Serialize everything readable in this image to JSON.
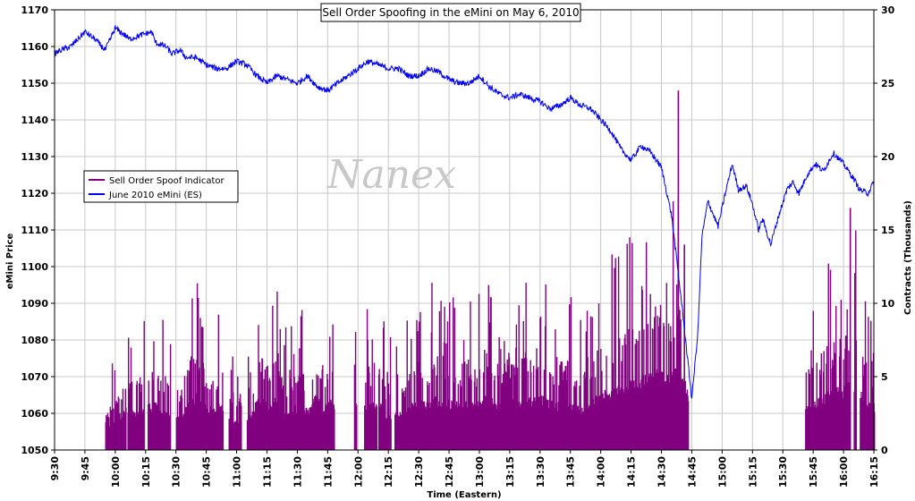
{
  "chart_data": {
    "type": "line",
    "title": "Sell Order Spoofing in the eMini on May 6, 2010",
    "watermark": "Nanex",
    "xlabel": "Time (Eastern)",
    "ylabel_left": "eMini Price",
    "ylabel_right": "Contracts (Thousands)",
    "x_ticks": [
      "9:30",
      "9:45",
      "10:00",
      "10:15",
      "10:30",
      "10:45",
      "11:00",
      "11:15",
      "11:30",
      "11:45",
      "12:00",
      "12:15",
      "12:30",
      "12:45",
      "13:00",
      "13:15",
      "13:30",
      "13:45",
      "14:00",
      "14:15",
      "14:30",
      "14:45",
      "15:00",
      "15:15",
      "15:30",
      "15:45",
      "16:00",
      "16:15"
    ],
    "x_tick_minutes": [
      0,
      15,
      30,
      45,
      60,
      75,
      90,
      105,
      120,
      135,
      150,
      165,
      180,
      195,
      210,
      225,
      240,
      255,
      270,
      285,
      300,
      315,
      330,
      345,
      360,
      375,
      390,
      405
    ],
    "xlim_minutes": [
      0,
      405
    ],
    "y_left_ticks": [
      1050,
      1060,
      1070,
      1080,
      1090,
      1100,
      1110,
      1120,
      1130,
      1140,
      1150,
      1160,
      1170
    ],
    "y_left_lim": [
      1050,
      1170
    ],
    "y_right_ticks": [
      0,
      5,
      10,
      15,
      20,
      25,
      30
    ],
    "y_right_lim": [
      0,
      30
    ],
    "legend_position": "middle-left",
    "series": [
      {
        "name": "Sell Order Spoof Indicator",
        "axis": "right",
        "color": "#800080",
        "style": "bars",
        "active_windows_minutes": [
          [
            25,
            35
          ],
          [
            36,
            44
          ],
          [
            46,
            57
          ],
          [
            60,
            83
          ],
          [
            86,
            92
          ],
          [
            95,
            138
          ],
          [
            148,
            149
          ],
          [
            153,
            159
          ],
          [
            160,
            166
          ],
          [
            168,
            313
          ],
          [
            371,
            393
          ],
          [
            395,
            396
          ],
          [
            398,
            405
          ]
        ],
        "x_minutes": [
          25,
          30,
          35,
          40,
          45,
          50,
          55,
          62,
          66,
          70,
          74,
          78,
          82,
          88,
          97,
          101,
          105,
          109,
          113,
          117,
          121,
          125,
          129,
          133,
          137,
          155,
          160,
          163,
          172,
          176,
          180,
          184,
          188,
          192,
          196,
          200,
          204,
          208,
          212,
          216,
          220,
          224,
          228,
          232,
          236,
          240,
          244,
          248,
          252,
          256,
          260,
          264,
          268,
          272,
          276,
          280,
          284,
          288,
          292,
          296,
          300,
          304,
          308,
          312,
          318,
          375,
          380,
          385,
          390,
          394,
          400,
          404
        ],
        "values": [
          2,
          3.5,
          4.5,
          4,
          5,
          5,
          4,
          3.5,
          5.5,
          6,
          5,
          4.5,
          5,
          3,
          4,
          6,
          5,
          5.5,
          4,
          4.5,
          5,
          4.5,
          6,
          5,
          5.5,
          5,
          5.5,
          4,
          4,
          5,
          5.5,
          5,
          6,
          5,
          5.5,
          5,
          5.5,
          5,
          6,
          5.5,
          5,
          6,
          5,
          6,
          5.5,
          6,
          5.5,
          5,
          5.5,
          5,
          4.5,
          5,
          6,
          6.5,
          6.5,
          7,
          7.5,
          7.5,
          8,
          8.5,
          9,
          8.5,
          9,
          7,
          0.2,
          5,
          6,
          6.5,
          7,
          8,
          5.5,
          5
        ],
        "peak_values": [
          {
            "x": 308,
            "y": 24.5
          },
          {
            "x": 311,
            "y": 14
          },
          {
            "x": 393,
            "y": 16.5
          }
        ]
      },
      {
        "name": "June 2010 eMini (ES)",
        "axis": "left",
        "color": "#0000ff",
        "style": "line",
        "x_minutes": [
          0,
          3,
          8,
          15,
          20,
          25,
          30,
          35,
          37,
          42,
          48,
          50,
          55,
          58,
          62,
          65,
          70,
          75,
          80,
          85,
          90,
          95,
          100,
          105,
          110,
          115,
          120,
          125,
          130,
          135,
          140,
          145,
          150,
          155,
          160,
          165,
          170,
          175,
          180,
          185,
          190,
          195,
          200,
          205,
          210,
          215,
          220,
          225,
          230,
          235,
          240,
          245,
          250,
          255,
          260,
          265,
          270,
          275,
          280,
          285,
          290,
          295,
          300,
          305,
          310,
          315,
          318,
          320,
          323,
          325,
          328,
          332,
          335,
          338,
          342,
          345,
          348,
          350,
          354,
          358,
          362,
          365,
          368,
          372,
          376,
          380,
          385,
          390,
          395,
          398,
          402,
          405
        ],
        "values": [
          1158,
          1159,
          1160,
          1164,
          1162,
          1159,
          1165,
          1163,
          1162,
          1163,
          1164,
          1161,
          1160,
          1158,
          1159,
          1157,
          1157,
          1155,
          1154,
          1154,
          1156,
          1155,
          1152,
          1150,
          1152,
          1151,
          1150,
          1152,
          1149,
          1148,
          1150,
          1152,
          1154,
          1156,
          1155,
          1154,
          1154,
          1152,
          1152,
          1154,
          1153,
          1151,
          1150,
          1150,
          1152,
          1149,
          1147,
          1146,
          1147,
          1146,
          1145,
          1143,
          1144,
          1146,
          1144,
          1143,
          1140,
          1137,
          1132,
          1129,
          1133,
          1131,
          1127,
          1114,
          1090,
          1064,
          1082,
          1108,
          1118,
          1115,
          1111,
          1121,
          1128,
          1121,
          1122,
          1117,
          1110,
          1113,
          1106,
          1114,
          1121,
          1123,
          1120,
          1125,
          1128,
          1126,
          1131,
          1128,
          1124,
          1121,
          1120,
          1123
        ]
      }
    ]
  }
}
